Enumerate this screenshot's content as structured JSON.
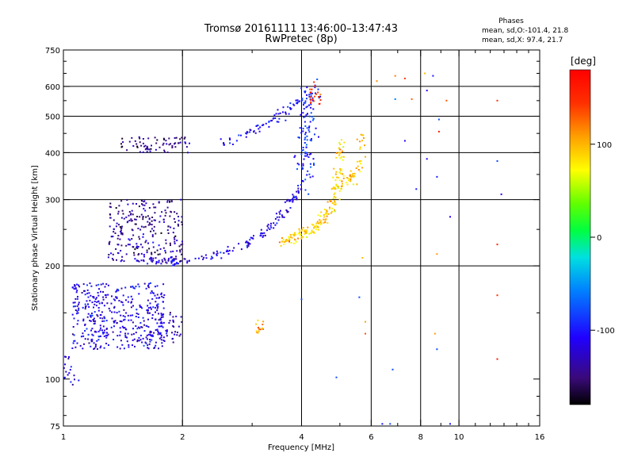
{
  "chart_data": {
    "type": "scatter",
    "title": "Tromsø 20161111 13:46:00–13:47:43",
    "subtitle": "RwPretec (8p)",
    "xlabel": "Frequency [MHz]",
    "ylabel": "Stationary phase Virtual Height [km]",
    "xscale": "log",
    "yscale": "log",
    "xlim": [
      1,
      16
    ],
    "ylim": [
      75,
      750
    ],
    "xticks": [
      1,
      2,
      4,
      6,
      8,
      10,
      16
    ],
    "xtick_labels": [
      "1",
      "2",
      "4",
      "6",
      "8",
      "10",
      "16"
    ],
    "yticks": [
      75,
      100,
      200,
      300,
      400,
      500,
      600,
      750
    ],
    "ytick_labels": [
      "75",
      "100",
      "200",
      "300",
      "400",
      "500",
      "600",
      "750"
    ],
    "grid_x": [
      2,
      4,
      6,
      8,
      10
    ],
    "grid_y": [
      200,
      300,
      400,
      500,
      600
    ],
    "grid": true,
    "phases_info": {
      "title": "Phases",
      "line1": "mean, sd,O:-101.4, 21.8",
      "line2": "mean, sd,X:  97.4, 21.7"
    },
    "colorbar": {
      "label": "[deg]",
      "range": [
        -180,
        180
      ],
      "ticks": [
        100,
        0,
        -100
      ],
      "tick_labels": [
        "100",
        "0",
        "-100"
      ]
    },
    "traces": [
      {
        "kind": "curve",
        "x": [
          1.55,
          1.8,
          2.0,
          2.4,
          2.9,
          3.3,
          3.7,
          3.95
        ],
        "y": [
          210,
          205,
          205,
          212,
          228,
          250,
          285,
          320
        ],
        "phase": -115,
        "n": 160,
        "spread": 0.018
      },
      {
        "kind": "curve",
        "x": [
          2.5,
          2.8,
          3.1,
          3.4,
          3.7,
          3.95
        ],
        "y": [
          425,
          440,
          460,
          490,
          520,
          560
        ],
        "phase": -110,
        "n": 70,
        "spread": 0.02
      },
      {
        "kind": "curve",
        "x": [
          4.0,
          4.05,
          4.1,
          4.15,
          4.2
        ],
        "y": [
          320,
          380,
          440,
          520,
          600
        ],
        "phase": -95,
        "n": 120,
        "spread": 0.04
      },
      {
        "kind": "curve",
        "x": [
          3.55,
          3.9,
          4.2,
          4.5,
          4.75,
          4.95,
          5.05
        ],
        "y": [
          232,
          238,
          248,
          262,
          285,
          330,
          430
        ],
        "phase": 95,
        "n": 180,
        "spread": 0.022
      },
      {
        "kind": "curve",
        "x": [
          5.1,
          5.3,
          5.5,
          5.6,
          5.65
        ],
        "y": [
          330,
          340,
          360,
          400,
          460
        ],
        "phase": 100,
        "n": 50,
        "spread": 0.025
      },
      {
        "kind": "cluster",
        "x": [
          1.05,
          1.8
        ],
        "y": [
          120,
          180
        ],
        "phase": -115,
        "n": 420
      },
      {
        "kind": "cluster",
        "x": [
          1.3,
          2.0
        ],
        "y": [
          205,
          300
        ],
        "phase": -140,
        "n": 260
      },
      {
        "kind": "cluster",
        "x": [
          1.4,
          2.1
        ],
        "y": [
          400,
          440
        ],
        "phase": -145,
        "n": 70
      },
      {
        "kind": "cluster",
        "x": [
          1.6,
          2.0
        ],
        "y": [
          125,
          155
        ],
        "phase": -125,
        "n": 60
      },
      {
        "kind": "cluster",
        "x": [
          1.0,
          1.1
        ],
        "y": [
          95,
          115
        ],
        "phase": -115,
        "n": 18
      },
      {
        "kind": "cluster",
        "x": [
          3.05,
          3.2
        ],
        "y": [
          130,
          145
        ],
        "phase": 115,
        "n": 15
      },
      {
        "kind": "cluster",
        "x": [
          4.2,
          4.5
        ],
        "y": [
          530,
          620
        ],
        "phase": 145,
        "n": 20
      }
    ],
    "points": [
      {
        "x": 6.9,
        "y": 640,
        "phase": 120
      },
      {
        "x": 7.3,
        "y": 630,
        "phase": 140
      },
      {
        "x": 8.2,
        "y": 650,
        "phase": 100
      },
      {
        "x": 8.6,
        "y": 640,
        "phase": -100
      },
      {
        "x": 6.2,
        "y": 620,
        "phase": 115
      },
      {
        "x": 6.9,
        "y": 555,
        "phase": -60
      },
      {
        "x": 7.6,
        "y": 555,
        "phase": 125
      },
      {
        "x": 8.3,
        "y": 585,
        "phase": -110
      },
      {
        "x": 9.3,
        "y": 550,
        "phase": 130
      },
      {
        "x": 12.5,
        "y": 550,
        "phase": 140
      },
      {
        "x": 8.9,
        "y": 490,
        "phase": -80
      },
      {
        "x": 8.9,
        "y": 455,
        "phase": 160
      },
      {
        "x": 7.3,
        "y": 430,
        "phase": -110
      },
      {
        "x": 8.3,
        "y": 385,
        "phase": -110
      },
      {
        "x": 8.8,
        "y": 345,
        "phase": -100
      },
      {
        "x": 12.5,
        "y": 380,
        "phase": -80
      },
      {
        "x": 12.8,
        "y": 310,
        "phase": -110
      },
      {
        "x": 7.8,
        "y": 320,
        "phase": -100
      },
      {
        "x": 9.5,
        "y": 270,
        "phase": -110
      },
      {
        "x": 8.8,
        "y": 215,
        "phase": 110
      },
      {
        "x": 12.5,
        "y": 228,
        "phase": 150
      },
      {
        "x": 5.7,
        "y": 210,
        "phase": 100
      },
      {
        "x": 5.6,
        "y": 165,
        "phase": -80
      },
      {
        "x": 4.0,
        "y": 163,
        "phase": -80
      },
      {
        "x": 5.8,
        "y": 142,
        "phase": 110
      },
      {
        "x": 8.7,
        "y": 132,
        "phase": 110
      },
      {
        "x": 8.8,
        "y": 120,
        "phase": -80
      },
      {
        "x": 12.5,
        "y": 167,
        "phase": 140
      },
      {
        "x": 12.5,
        "y": 113,
        "phase": 160
      },
      {
        "x": 6.8,
        "y": 106,
        "phase": -80
      },
      {
        "x": 4.9,
        "y": 101,
        "phase": -80
      },
      {
        "x": 6.7,
        "y": 76,
        "phase": -80
      },
      {
        "x": 6.4,
        "y": 76,
        "phase": -100
      },
      {
        "x": 9.5,
        "y": 76,
        "phase": -100
      },
      {
        "x": 5.8,
        "y": 132,
        "phase": 130
      }
    ]
  }
}
